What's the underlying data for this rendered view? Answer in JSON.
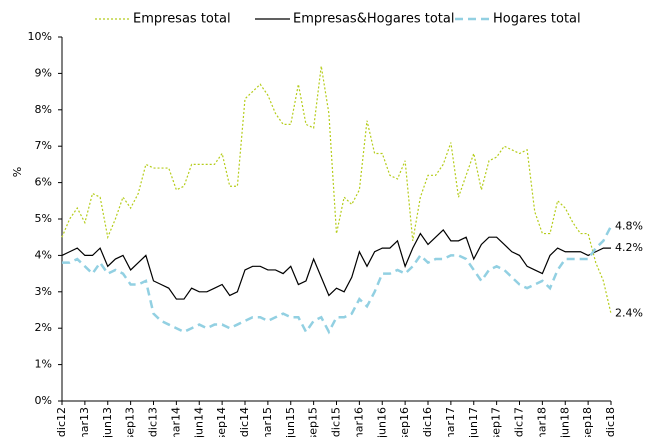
{
  "chart_data": {
    "type": "line",
    "ylabel": "%",
    "ylim": [
      0,
      10
    ],
    "yticks": [
      {
        "value": 0,
        "label": "0%"
      },
      {
        "value": 1,
        "label": "1%"
      },
      {
        "value": 2,
        "label": "2%"
      },
      {
        "value": 3,
        "label": "3%"
      },
      {
        "value": 4,
        "label": "4%"
      },
      {
        "value": 5,
        "label": "5%"
      },
      {
        "value": 6,
        "label": "6%"
      },
      {
        "value": 7,
        "label": "7%"
      },
      {
        "value": 8,
        "label": "8%"
      },
      {
        "value": 9,
        "label": "9%"
      },
      {
        "value": 10,
        "label": "10%"
      }
    ],
    "categories": [
      "dic12",
      null,
      null,
      "mar13",
      null,
      null,
      "jun13",
      null,
      null,
      "sep13",
      null,
      null,
      "dic13",
      null,
      null,
      "mar14",
      null,
      null,
      "jun14",
      null,
      null,
      "sep14",
      null,
      null,
      "dic14",
      null,
      null,
      "mar15",
      null,
      null,
      "jun15",
      null,
      null,
      "sep15",
      null,
      null,
      "dic15",
      null,
      null,
      "mar16",
      null,
      null,
      "jun16",
      null,
      null,
      "sep16",
      null,
      null,
      "dic16",
      null,
      null,
      "mar17",
      null,
      null,
      "jun17",
      null,
      null,
      "sep17",
      null,
      null,
      "dic17",
      null,
      null,
      "mar18",
      null,
      null,
      "jun18",
      null,
      null,
      "sep18",
      null,
      null,
      "dic18"
    ],
    "grid": false,
    "series": [
      {
        "name": "Empresas total",
        "color": "#b5cc1a",
        "style": "dotted",
        "values": [
          4.5,
          5.0,
          5.3,
          4.9,
          5.7,
          5.6,
          4.5,
          5.0,
          5.6,
          5.3,
          5.7,
          6.5,
          6.4,
          6.4,
          6.4,
          5.8,
          5.9,
          6.5,
          6.5,
          6.5,
          6.5,
          6.8,
          5.9,
          5.9,
          8.3,
          8.5,
          8.7,
          8.4,
          7.9,
          7.6,
          7.6,
          8.7,
          7.6,
          7.5,
          9.2,
          7.9,
          4.6,
          5.6,
          5.4,
          5.8,
          7.7,
          6.8,
          6.8,
          6.2,
          6.1,
          6.6,
          4.4,
          5.6,
          6.2,
          6.2,
          6.5,
          7.1,
          5.6,
          6.2,
          6.8,
          5.8,
          6.6,
          6.7,
          7.0,
          6.9,
          6.8,
          6.9,
          5.2,
          4.6,
          4.6,
          5.5,
          5.3,
          4.9,
          4.6,
          4.6,
          3.8,
          3.3,
          2.4
        ],
        "value_labels": [
          null,
          null,
          null,
          null,
          null,
          null,
          null,
          null,
          null,
          null,
          null,
          null,
          null,
          null,
          null,
          null,
          null,
          null,
          null,
          null,
          null,
          null,
          null,
          null,
          null,
          null,
          null,
          null,
          null,
          null,
          null,
          null,
          null,
          null,
          null,
          null,
          null,
          null,
          null,
          null,
          null,
          null,
          null,
          null,
          null,
          null,
          null,
          null,
          null,
          null,
          null,
          null,
          null,
          null,
          null,
          null,
          null,
          null,
          null,
          null,
          null,
          null,
          null,
          null,
          null,
          null,
          null,
          null,
          null,
          null,
          null,
          null,
          "2.4%"
        ]
      },
      {
        "name": "Empresas&Hogares total",
        "color": "#000000",
        "style": "solid",
        "values": [
          4.0,
          4.1,
          4.2,
          4.0,
          4.0,
          4.2,
          3.7,
          3.9,
          4.0,
          3.6,
          3.8,
          4.0,
          3.3,
          3.2,
          3.1,
          2.8,
          2.8,
          3.1,
          3.0,
          3.0,
          3.1,
          3.2,
          2.9,
          3.0,
          3.6,
          3.7,
          3.7,
          3.6,
          3.6,
          3.5,
          3.7,
          3.2,
          3.3,
          3.9,
          3.4,
          2.9,
          3.1,
          3.0,
          3.4,
          4.1,
          3.7,
          4.1,
          4.2,
          4.2,
          4.4,
          3.7,
          4.2,
          4.6,
          4.3,
          4.5,
          4.7,
          4.4,
          4.4,
          4.5,
          3.9,
          4.3,
          4.5,
          4.5,
          4.3,
          4.1,
          4.0,
          3.7,
          3.6,
          3.5,
          4.0,
          4.2,
          4.1,
          4.1,
          4.1,
          4.0,
          4.1,
          4.2,
          4.2
        ],
        "value_labels": [
          null,
          null,
          null,
          null,
          null,
          null,
          null,
          null,
          null,
          null,
          null,
          null,
          null,
          null,
          null,
          null,
          null,
          null,
          null,
          null,
          null,
          null,
          null,
          null,
          null,
          null,
          null,
          null,
          null,
          null,
          null,
          null,
          null,
          null,
          null,
          null,
          null,
          null,
          null,
          null,
          null,
          null,
          null,
          null,
          null,
          null,
          null,
          null,
          null,
          null,
          null,
          null,
          null,
          null,
          null,
          null,
          null,
          null,
          null,
          null,
          null,
          null,
          null,
          null,
          null,
          null,
          null,
          null,
          null,
          null,
          null,
          null,
          "4.2%"
        ]
      },
      {
        "name": "Hogares total",
        "color": "#92d0e2",
        "style": "dashed",
        "values": [
          3.8,
          3.8,
          3.9,
          3.7,
          3.5,
          3.8,
          3.5,
          3.6,
          3.5,
          3.2,
          3.2,
          3.3,
          2.4,
          2.2,
          2.1,
          2.0,
          1.9,
          2.0,
          2.1,
          2.0,
          2.1,
          2.1,
          2.0,
          2.1,
          2.2,
          2.3,
          2.3,
          2.2,
          2.3,
          2.4,
          2.3,
          2.3,
          1.9,
          2.2,
          2.3,
          1.9,
          2.3,
          2.3,
          2.4,
          2.8,
          2.6,
          3.0,
          3.5,
          3.5,
          3.6,
          3.5,
          3.7,
          4.0,
          3.8,
          3.9,
          3.9,
          4.0,
          4.0,
          3.9,
          3.6,
          3.3,
          3.6,
          3.7,
          3.6,
          3.4,
          3.2,
          3.1,
          3.2,
          3.3,
          3.1,
          3.6,
          3.9,
          3.9,
          3.9,
          3.9,
          4.2,
          4.4,
          4.8
        ],
        "value_labels": [
          null,
          null,
          null,
          null,
          null,
          null,
          null,
          null,
          null,
          null,
          null,
          null,
          null,
          null,
          null,
          null,
          null,
          null,
          null,
          null,
          null,
          null,
          null,
          null,
          null,
          null,
          null,
          null,
          null,
          null,
          null,
          null,
          null,
          null,
          null,
          null,
          null,
          null,
          null,
          null,
          null,
          null,
          null,
          null,
          null,
          null,
          null,
          null,
          null,
          null,
          null,
          null,
          null,
          null,
          null,
          null,
          null,
          null,
          null,
          null,
          null,
          null,
          null,
          null,
          null,
          null,
          null,
          null,
          null,
          null,
          null,
          null,
          "4.8%"
        ]
      }
    ]
  }
}
